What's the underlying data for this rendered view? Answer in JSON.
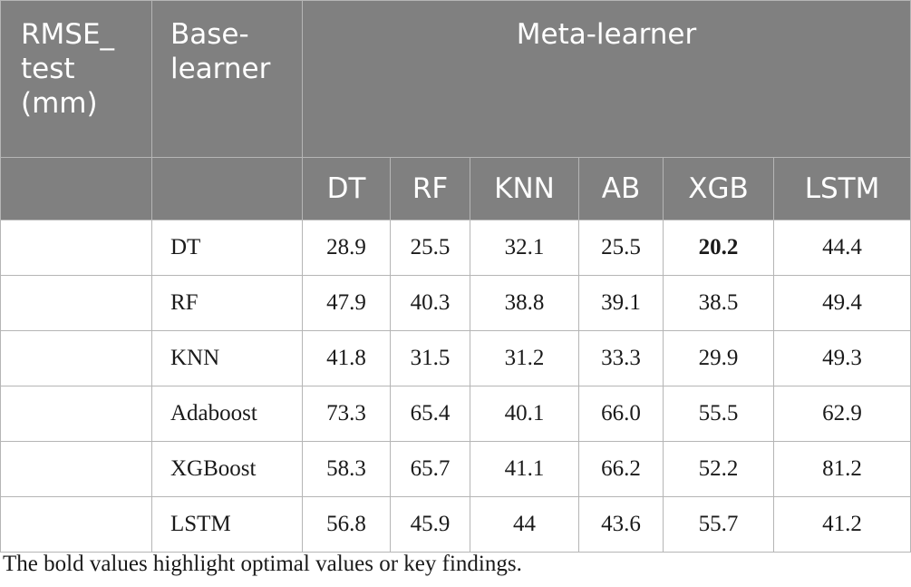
{
  "header": {
    "corner_label": "RMSE_ test (mm)",
    "corner_lines": [
      "RMSE_",
      "test",
      "(mm)"
    ],
    "base_learner_label": "Base-learner",
    "base_learner_lines": [
      "Base-",
      "learner"
    ],
    "meta_learner_label": "Meta-learner",
    "meta_columns": [
      "DT",
      "RF",
      "KNN",
      "AB",
      "XGB",
      "LSTM"
    ]
  },
  "rows": [
    {
      "base": "DT",
      "values": [
        "28.9",
        "25.5",
        "32.1",
        "25.5",
        "20.2",
        "44.4"
      ],
      "bold_index": 4
    },
    {
      "base": "RF",
      "values": [
        "47.9",
        "40.3",
        "38.8",
        "39.1",
        "38.5",
        "49.4"
      ]
    },
    {
      "base": "KNN",
      "values": [
        "41.8",
        "31.5",
        "31.2",
        "33.3",
        "29.9",
        "49.3"
      ]
    },
    {
      "base": "Adaboost",
      "values": [
        "73.3",
        "65.4",
        "40.1",
        "66.0",
        "55.5",
        "62.9"
      ]
    },
    {
      "base": "XGBoost",
      "values": [
        "58.3",
        "65.7",
        "41.1",
        "66.2",
        "52.2",
        "81.2"
      ]
    },
    {
      "base": "LSTM",
      "values": [
        "56.8",
        "45.9",
        "44",
        "43.6",
        "55.7",
        "41.2"
      ]
    }
  ],
  "footnote": "The bold values highlight optimal values or key findings.",
  "colors": {
    "header_bg": "#808080",
    "header_text": "#ffffff",
    "grid": "#b5b5b5",
    "body_text": "#1a1a1a"
  }
}
